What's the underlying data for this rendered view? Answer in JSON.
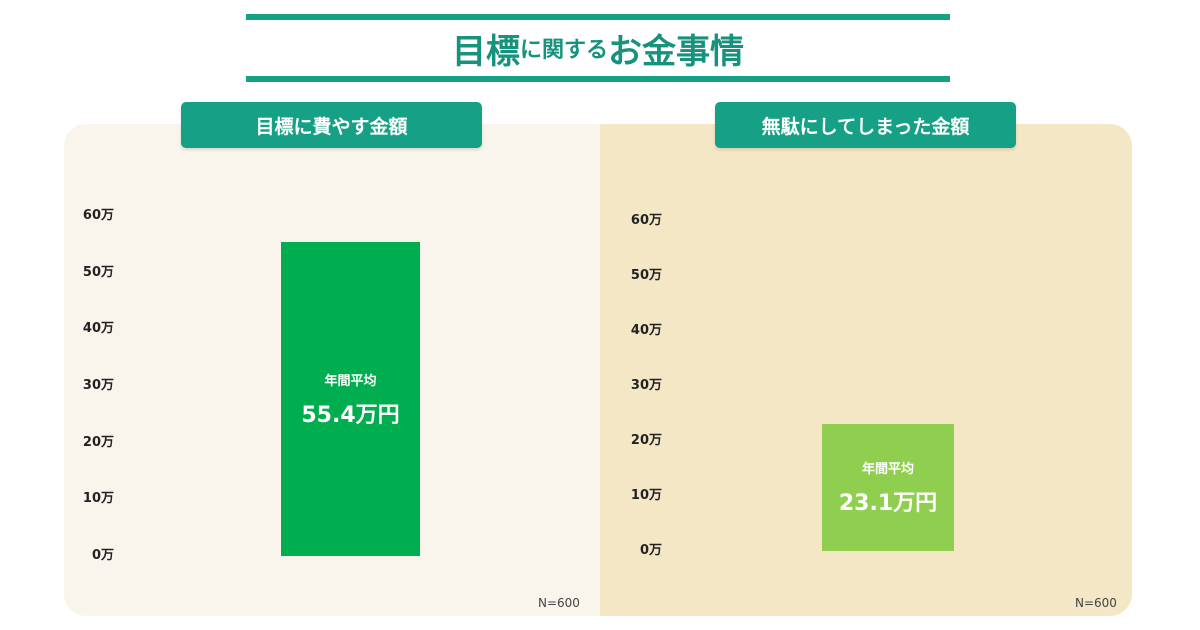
{
  "title": {
    "part1": "目標",
    "part2": "に関する",
    "part3": "お金事情"
  },
  "colors": {
    "accent": "#16a085",
    "left_bar": "#00ad4f",
    "right_bar": "#90ce4f",
    "left_panel_bg": "#f9f5ec",
    "right_panel_bg": "#f3e7c6"
  },
  "chart_data": [
    {
      "type": "bar",
      "title": "目標に費やす金額",
      "categories": [
        ""
      ],
      "values": [
        55.4
      ],
      "ylim": [
        0,
        60
      ],
      "y_ticks": [
        "0万",
        "10万",
        "20万",
        "30万",
        "40万",
        "50万",
        "60万"
      ],
      "bar_label": "年間平均",
      "value_label": "55.4万円",
      "note": "N=600",
      "grid": false
    },
    {
      "type": "bar",
      "title": "無駄にしてしまった金額",
      "categories": [
        ""
      ],
      "values": [
        23.1
      ],
      "ylim": [
        0,
        60
      ],
      "y_ticks": [
        "0万",
        "10万",
        "20万",
        "30万",
        "40万",
        "50万",
        "60万"
      ],
      "bar_label": "年間平均",
      "value_label": "23.1万円",
      "note": "N=600",
      "grid": false
    }
  ]
}
